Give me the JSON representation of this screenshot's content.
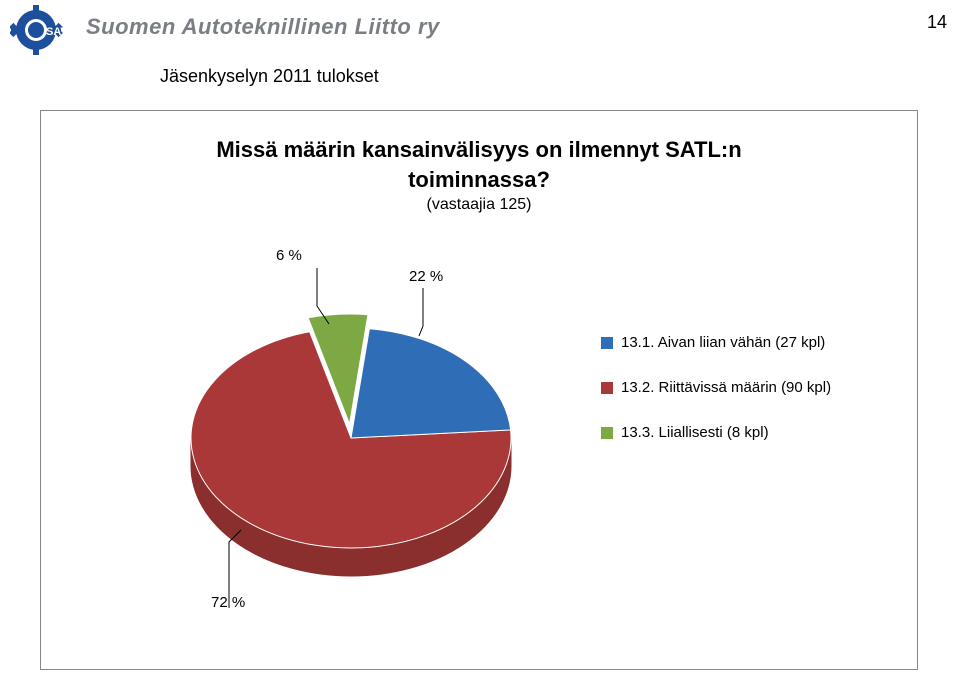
{
  "page": {
    "number": "14",
    "org_name": "Suomen Autoteknillinen Liitto ry",
    "org_color": "#7a7f85",
    "org_fontsize": 22,
    "logo": {
      "text": "SATL",
      "gear_color": "#1d4f9c",
      "text_color": "#ffffff"
    },
    "subtitle": "Jäsenkyselyn 2011 tulokset",
    "subtitle_fontsize": 18
  },
  "chart": {
    "type": "pie",
    "title_line1": "Missä määrin kansainvälisyys on ilmennyt SATL:n",
    "title_line2": "toiminnassa?",
    "title_fontsize": 22,
    "subtitle": "(vastaajia 125)",
    "subtitle_fontsize": 16,
    "background_color": "#ffffff",
    "border_color": "#888888",
    "slices": [
      {
        "label": "13.1. Aivan liian vähän (27 kpl)",
        "pct_label": "22 %",
        "value": 22,
        "color": "#2f6db6",
        "edge": "#2b5a93"
      },
      {
        "label": "13.2. Riittävissä määrin (90 kpl)",
        "pct_label": "72 %",
        "value": 72,
        "color": "#aa3838",
        "edge": "#8a2e2e"
      },
      {
        "label": "13.3. Liiallisesti (8 kpl)",
        "pct_label": "6 %",
        "value": 6,
        "color": "#7da944",
        "edge": "#6a8d3a"
      }
    ],
    "callout_fontsize": 15,
    "legend_fontsize": 15,
    "depth_shade": "rgba(0,0,0,0.28)"
  }
}
